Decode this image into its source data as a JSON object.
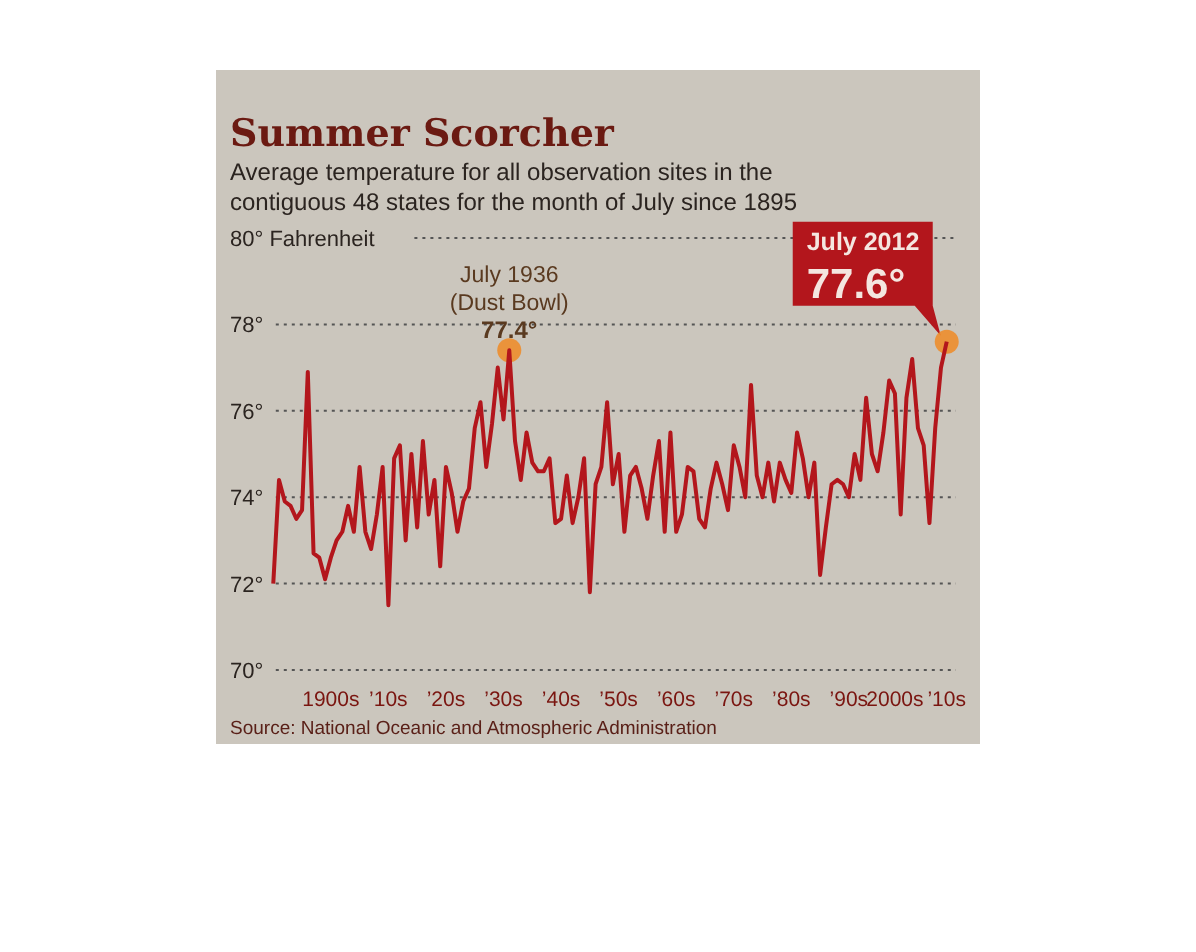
{
  "chart_data": {
    "type": "line",
    "title": "Summer Scorcher",
    "subtitle": "Average temperature for all observation sites in the contiguous 48 states for the month of July since 1895",
    "categories": [
      null,
      null,
      null,
      null,
      null,
      null,
      null,
      null,
      null,
      null,
      "1900s",
      null,
      null,
      null,
      null,
      null,
      null,
      null,
      null,
      null,
      "’10s",
      null,
      null,
      null,
      null,
      null,
      null,
      null,
      null,
      null,
      "’20s",
      null,
      null,
      null,
      null,
      null,
      null,
      null,
      null,
      null,
      "’30s",
      null,
      null,
      null,
      null,
      null,
      null,
      null,
      null,
      null,
      "’40s",
      null,
      null,
      null,
      null,
      null,
      null,
      null,
      null,
      null,
      "’50s",
      null,
      null,
      null,
      null,
      null,
      null,
      null,
      null,
      null,
      "’60s",
      null,
      null,
      null,
      null,
      null,
      null,
      null,
      null,
      null,
      "’70s",
      null,
      null,
      null,
      null,
      null,
      null,
      null,
      null,
      null,
      "’80s",
      null,
      null,
      null,
      null,
      null,
      null,
      null,
      null,
      null,
      "’90s",
      null,
      null,
      null,
      null,
      null,
      null,
      null,
      "2000s",
      null,
      null,
      null,
      null,
      null,
      null,
      null,
      null,
      "’10s"
    ],
    "series": [
      {
        "color": "#b3161c",
        "values": [
          72.0,
          74.4,
          73.9,
          73.8,
          73.5,
          73.7,
          76.9,
          72.7,
          72.6,
          72.1,
          72.6,
          73.0,
          73.2,
          73.8,
          73.2,
          74.7,
          73.2,
          72.8,
          73.6,
          74.7,
          71.5,
          74.9,
          75.2,
          73.0,
          75.0,
          73.3,
          75.3,
          73.6,
          74.4,
          72.4,
          74.7,
          74.1,
          73.2,
          73.9,
          74.2,
          75.6,
          76.2,
          74.7,
          75.7,
          77.0,
          75.8,
          77.4,
          75.3,
          74.4,
          75.5,
          74.8,
          74.6,
          74.6,
          74.9,
          73.4,
          73.5,
          74.5,
          73.4,
          74.0,
          74.9,
          71.8,
          74.3,
          74.7,
          76.2,
          74.3,
          75.0,
          73.2,
          74.5,
          74.7,
          74.2,
          73.5,
          74.5,
          75.3,
          73.2,
          75.5,
          73.2,
          73.6,
          74.7,
          74.6,
          73.5,
          73.3,
          74.2,
          74.8,
          74.3,
          73.7,
          75.2,
          74.7,
          74.0,
          76.6,
          74.5,
          74.0,
          74.8,
          73.9,
          74.8,
          74.4,
          74.1,
          75.5,
          74.9,
          74.0,
          74.8,
          72.2,
          73.3,
          74.3,
          74.4,
          74.3,
          74.0,
          75.0,
          74.4,
          76.3,
          75.0,
          74.6,
          75.5,
          76.7,
          76.4,
          73.6,
          76.3,
          77.2,
          75.6,
          75.2,
          73.4,
          75.6,
          77.0,
          77.6
        ]
      }
    ],
    "ylim": [
      70,
      80
    ],
    "yticks": [
      {
        "value": 70,
        "label": "70°"
      },
      {
        "value": 72,
        "label": "72°"
      },
      {
        "value": 74,
        "label": "74°"
      },
      {
        "value": 76,
        "label": "76°"
      },
      {
        "value": 78,
        "label": "78°"
      },
      {
        "value": 80,
        "label": "80° Fahrenheit"
      }
    ],
    "grid": "y",
    "line_style": "solid",
    "marker": "none",
    "annotations": [
      {
        "text": "July 1936\n(Dust Bowl)\n77.4°",
        "y": 77.4
      },
      "July 2012\n77.6°",
      "Source: National Oceanic and Atmospheric Administration"
    ]
  }
}
